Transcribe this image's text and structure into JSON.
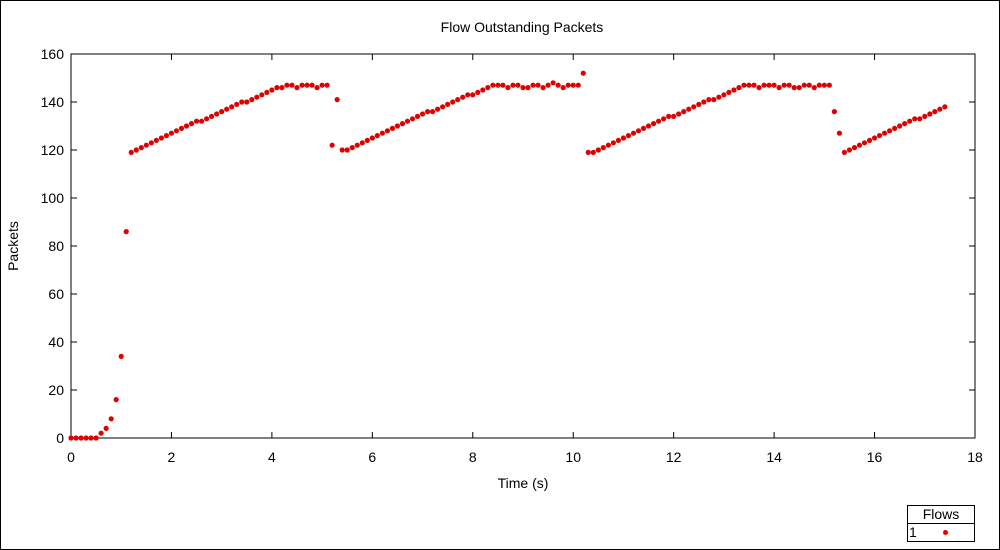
{
  "chart_data": {
    "type": "scatter",
    "title": "Flow Outstanding Packets",
    "xlabel": "Time (s)",
    "ylabel": "Packets",
    "xlim": [
      0,
      18
    ],
    "ylim": [
      0,
      160
    ],
    "xticks": [
      0,
      2,
      4,
      6,
      8,
      10,
      12,
      14,
      16,
      18
    ],
    "yticks": [
      0,
      20,
      40,
      60,
      80,
      100,
      120,
      140,
      160
    ],
    "grid": false,
    "legend": {
      "title": "Flows",
      "placement": "bottom-right outside"
    },
    "series": [
      {
        "name": "1",
        "color": "#e00000",
        "marker": "circle",
        "points": [
          [
            0.0,
            0
          ],
          [
            0.1,
            0
          ],
          [
            0.2,
            0
          ],
          [
            0.3,
            0
          ],
          [
            0.4,
            0
          ],
          [
            0.5,
            0
          ],
          [
            0.6,
            2
          ],
          [
            0.7,
            4
          ],
          [
            0.8,
            8
          ],
          [
            0.9,
            16
          ],
          [
            1.0,
            34
          ],
          [
            1.1,
            86
          ],
          [
            1.2,
            119
          ],
          [
            1.3,
            120
          ],
          [
            1.4,
            121
          ],
          [
            1.5,
            122
          ],
          [
            1.6,
            123
          ],
          [
            1.7,
            124
          ],
          [
            1.8,
            125
          ],
          [
            1.9,
            126
          ],
          [
            2.0,
            127
          ],
          [
            2.1,
            128
          ],
          [
            2.2,
            129
          ],
          [
            2.3,
            130
          ],
          [
            2.4,
            131
          ],
          [
            2.5,
            132
          ],
          [
            2.6,
            132
          ],
          [
            2.7,
            133
          ],
          [
            2.8,
            134
          ],
          [
            2.9,
            135
          ],
          [
            3.0,
            136
          ],
          [
            3.1,
            137
          ],
          [
            3.2,
            138
          ],
          [
            3.3,
            139
          ],
          [
            3.4,
            140
          ],
          [
            3.5,
            140
          ],
          [
            3.6,
            141
          ],
          [
            3.7,
            142
          ],
          [
            3.8,
            143
          ],
          [
            3.9,
            144
          ],
          [
            4.0,
            145
          ],
          [
            4.1,
            146
          ],
          [
            4.2,
            146
          ],
          [
            4.3,
            147
          ],
          [
            4.4,
            147
          ],
          [
            4.5,
            146
          ],
          [
            4.6,
            147
          ],
          [
            4.7,
            147
          ],
          [
            4.8,
            147
          ],
          [
            4.9,
            146
          ],
          [
            5.0,
            147
          ],
          [
            5.1,
            147
          ],
          [
            5.2,
            122
          ],
          [
            5.3,
            141
          ],
          [
            5.4,
            120
          ],
          [
            5.5,
            120
          ],
          [
            5.6,
            121
          ],
          [
            5.7,
            122
          ],
          [
            5.8,
            123
          ],
          [
            5.9,
            124
          ],
          [
            6.0,
            125
          ],
          [
            6.1,
            126
          ],
          [
            6.2,
            127
          ],
          [
            6.3,
            128
          ],
          [
            6.4,
            129
          ],
          [
            6.5,
            130
          ],
          [
            6.6,
            131
          ],
          [
            6.7,
            132
          ],
          [
            6.8,
            133
          ],
          [
            6.9,
            134
          ],
          [
            7.0,
            135
          ],
          [
            7.1,
            136
          ],
          [
            7.2,
            136
          ],
          [
            7.3,
            137
          ],
          [
            7.4,
            138
          ],
          [
            7.5,
            139
          ],
          [
            7.6,
            140
          ],
          [
            7.7,
            141
          ],
          [
            7.8,
            142
          ],
          [
            7.9,
            143
          ],
          [
            8.0,
            143
          ],
          [
            8.1,
            144
          ],
          [
            8.2,
            145
          ],
          [
            8.3,
            146
          ],
          [
            8.4,
            147
          ],
          [
            8.5,
            147
          ],
          [
            8.6,
            147
          ],
          [
            8.7,
            146
          ],
          [
            8.8,
            147
          ],
          [
            8.9,
            147
          ],
          [
            9.0,
            146
          ],
          [
            9.1,
            146
          ],
          [
            9.2,
            147
          ],
          [
            9.3,
            147
          ],
          [
            9.4,
            146
          ],
          [
            9.5,
            147
          ],
          [
            9.6,
            148
          ],
          [
            9.7,
            147
          ],
          [
            9.8,
            146
          ],
          [
            9.9,
            147
          ],
          [
            10.0,
            147
          ],
          [
            10.1,
            147
          ],
          [
            10.2,
            152
          ],
          [
            10.3,
            119
          ],
          [
            10.4,
            119
          ],
          [
            10.5,
            120
          ],
          [
            10.6,
            121
          ],
          [
            10.7,
            122
          ],
          [
            10.8,
            123
          ],
          [
            10.9,
            124
          ],
          [
            11.0,
            125
          ],
          [
            11.1,
            126
          ],
          [
            11.2,
            127
          ],
          [
            11.3,
            128
          ],
          [
            11.4,
            129
          ],
          [
            11.5,
            130
          ],
          [
            11.6,
            131
          ],
          [
            11.7,
            132
          ],
          [
            11.8,
            133
          ],
          [
            11.9,
            134
          ],
          [
            12.0,
            134
          ],
          [
            12.1,
            135
          ],
          [
            12.2,
            136
          ],
          [
            12.3,
            137
          ],
          [
            12.4,
            138
          ],
          [
            12.5,
            139
          ],
          [
            12.6,
            140
          ],
          [
            12.7,
            141
          ],
          [
            12.8,
            141
          ],
          [
            12.9,
            142
          ],
          [
            13.0,
            143
          ],
          [
            13.1,
            144
          ],
          [
            13.2,
            145
          ],
          [
            13.3,
            146
          ],
          [
            13.4,
            147
          ],
          [
            13.5,
            147
          ],
          [
            13.6,
            147
          ],
          [
            13.7,
            146
          ],
          [
            13.8,
            147
          ],
          [
            13.9,
            147
          ],
          [
            14.0,
            147
          ],
          [
            14.1,
            146
          ],
          [
            14.2,
            147
          ],
          [
            14.3,
            147
          ],
          [
            14.4,
            146
          ],
          [
            14.5,
            146
          ],
          [
            14.6,
            147
          ],
          [
            14.7,
            147
          ],
          [
            14.8,
            146
          ],
          [
            14.9,
            147
          ],
          [
            15.0,
            147
          ],
          [
            15.1,
            147
          ],
          [
            15.2,
            136
          ],
          [
            15.3,
            127
          ],
          [
            15.4,
            119
          ],
          [
            15.5,
            120
          ],
          [
            15.6,
            121
          ],
          [
            15.7,
            122
          ],
          [
            15.8,
            123
          ],
          [
            15.9,
            124
          ],
          [
            16.0,
            125
          ],
          [
            16.1,
            126
          ],
          [
            16.2,
            127
          ],
          [
            16.3,
            128
          ],
          [
            16.4,
            129
          ],
          [
            16.5,
            130
          ],
          [
            16.6,
            131
          ],
          [
            16.7,
            132
          ],
          [
            16.8,
            133
          ],
          [
            16.9,
            133
          ],
          [
            17.0,
            134
          ],
          [
            17.1,
            135
          ],
          [
            17.2,
            136
          ],
          [
            17.3,
            137
          ],
          [
            17.4,
            138
          ]
        ]
      }
    ]
  }
}
